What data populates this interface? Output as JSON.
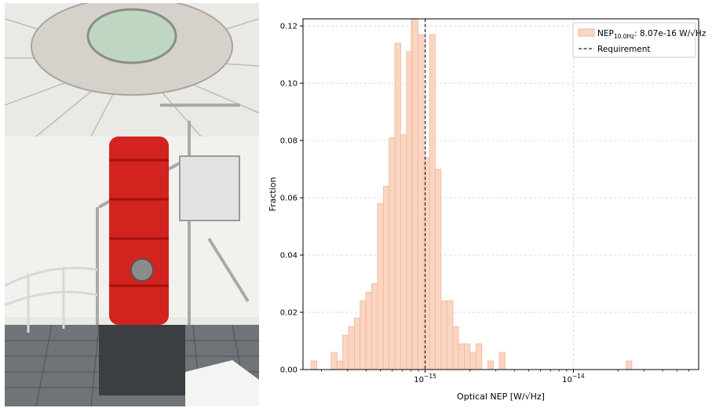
{
  "chart_data": {
    "type": "histogram",
    "xscale": "log",
    "xlim": [
      1.5e-16,
      7e-14
    ],
    "ylim": [
      0,
      0.1225
    ],
    "xlabel": "Optical NEP [W/√Hz]",
    "ylabel": "Fraction",
    "yticks": [
      "0.00",
      "0.02",
      "0.04",
      "0.06",
      "0.08",
      "0.10",
      "0.12"
    ],
    "xticks": [
      {
        "value": 1e-15,
        "base": "10",
        "exp": "−15"
      },
      {
        "value": 1e-14,
        "base": "10",
        "exp": "−14"
      }
    ],
    "grid": true,
    "legend_position": "top-right",
    "legend": {
      "hist_label_main": "NEP",
      "hist_label_sub": "10.0Hz",
      "hist_label_value": ": 8.07e-16 W/√Hz",
      "requirement_label": "Requirement"
    },
    "median_line": 8.07e-16,
    "requirement_line": 1e-15,
    "bins": [
      {
        "lo": 1.7e-16,
        "hi": 1.86e-16,
        "value": 0.003
      },
      {
        "lo": 2.32e-16,
        "hi": 2.54e-16,
        "value": 0.006
      },
      {
        "lo": 2.54e-16,
        "hi": 2.78e-16,
        "value": 0.003
      },
      {
        "lo": 2.78e-16,
        "hi": 3.04e-16,
        "value": 0.012
      },
      {
        "lo": 3.04e-16,
        "hi": 3.33e-16,
        "value": 0.015
      },
      {
        "lo": 3.33e-16,
        "hi": 3.64e-16,
        "value": 0.018
      },
      {
        "lo": 3.64e-16,
        "hi": 3.98e-16,
        "value": 0.024
      },
      {
        "lo": 3.98e-16,
        "hi": 4.36e-16,
        "value": 0.027
      },
      {
        "lo": 4.36e-16,
        "hi": 4.77e-16,
        "value": 0.03
      },
      {
        "lo": 4.77e-16,
        "hi": 5.22e-16,
        "value": 0.058
      },
      {
        "lo": 5.22e-16,
        "hi": 5.71e-16,
        "value": 0.064
      },
      {
        "lo": 5.71e-16,
        "hi": 6.25e-16,
        "value": 0.081
      },
      {
        "lo": 6.25e-16,
        "hi": 6.84e-16,
        "value": 0.114
      },
      {
        "lo": 6.84e-16,
        "hi": 7.48e-16,
        "value": 0.082
      },
      {
        "lo": 7.48e-16,
        "hi": 8.19e-16,
        "value": 0.111
      },
      {
        "lo": 8.19e-16,
        "hi": 8.96e-16,
        "value": 0.126
      },
      {
        "lo": 8.96e-16,
        "hi": 9.8e-16,
        "value": 0.117
      },
      {
        "lo": 9.8e-16,
        "hi": 1.07e-15,
        "value": 0.074
      },
      {
        "lo": 1.07e-15,
        "hi": 1.17e-15,
        "value": 0.117
      },
      {
        "lo": 1.17e-15,
        "hi": 1.28e-15,
        "value": 0.07
      },
      {
        "lo": 1.28e-15,
        "hi": 1.4e-15,
        "value": 0.024
      },
      {
        "lo": 1.4e-15,
        "hi": 1.54e-15,
        "value": 0.024
      },
      {
        "lo": 1.54e-15,
        "hi": 1.68e-15,
        "value": 0.015
      },
      {
        "lo": 1.68e-15,
        "hi": 1.84e-15,
        "value": 0.009
      },
      {
        "lo": 1.84e-15,
        "hi": 2.01e-15,
        "value": 0.009
      },
      {
        "lo": 2.01e-15,
        "hi": 2.2e-15,
        "value": 0.006
      },
      {
        "lo": 2.2e-15,
        "hi": 2.41e-15,
        "value": 0.009
      },
      {
        "lo": 2.64e-15,
        "hi": 2.89e-15,
        "value": 0.003
      },
      {
        "lo": 3.16e-15,
        "hi": 3.46e-15,
        "value": 0.006
      },
      {
        "lo": 2.27e-14,
        "hi": 2.48e-14,
        "value": 0.003
      }
    ],
    "colors": {
      "hist_fill": "#fad5c2",
      "hist_edge": "#f2b79a",
      "median_line": "#f9c6aa",
      "requirement_line": "#222222",
      "grid": "#c8c8c8"
    }
  }
}
